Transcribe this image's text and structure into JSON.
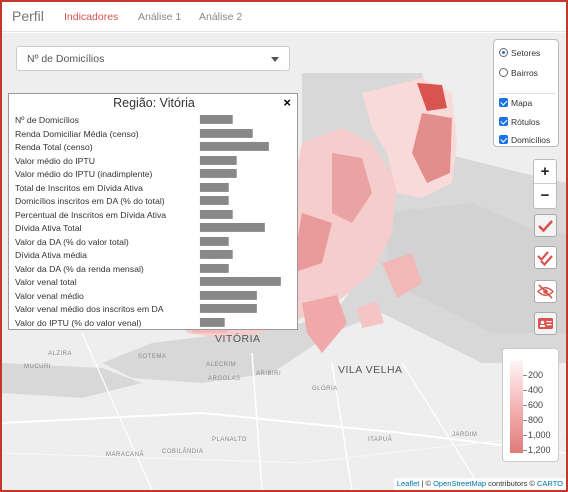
{
  "nav": {
    "brand": "Perfil",
    "tabs": [
      {
        "label": "Indicadores",
        "active": true
      },
      {
        "label": "Análise 1",
        "active": false
      },
      {
        "label": "Análise 2",
        "active": false
      }
    ]
  },
  "indicator_select": {
    "value": "Nº de Domicílios"
  },
  "info_panel": {
    "title": "Região: Vitória",
    "close_symbol": "×",
    "rows": [
      {
        "label": "Nº de Domicílios",
        "value": "████████"
      },
      {
        "label": "Renda Domiciliar Média (censo)",
        "value": "█████████████"
      },
      {
        "label": "Renda Total (censo)",
        "value": "█████████████████"
      },
      {
        "label": "Valor médio do IPTU",
        "value": "█████████"
      },
      {
        "label": "Valor médio do IPTU (inadimplente)",
        "value": "█████████"
      },
      {
        "label": "Total de Inscritos em Dívida Ativa",
        "value": "███████"
      },
      {
        "label": "Domicílios inscritos em DA (% do total)",
        "value": "███████"
      },
      {
        "label": "Percentual de Inscritos em Dívida Ativa",
        "value": "████████"
      },
      {
        "label": "Dívida Ativa Total",
        "value": "████████████████"
      },
      {
        "label": "Valor da DA (% do valor total)",
        "value": "███████"
      },
      {
        "label": "Dívida Ativa média",
        "value": "████████"
      },
      {
        "label": "Valor da DA (% da renda mensal)",
        "value": "███████"
      },
      {
        "label": "Valor venal total",
        "value": "████████████████████"
      },
      {
        "label": "Valor venal médio",
        "value": "██████████████"
      },
      {
        "label": "Valor venal médio dos inscritos em DA",
        "value": "██████████████"
      },
      {
        "label": "Valor do IPTU (% do valor venal)",
        "value": "██████"
      }
    ]
  },
  "layer_control": {
    "base": [
      {
        "label": "Setores",
        "checked": true
      },
      {
        "label": "Bairros",
        "checked": false
      }
    ],
    "overlays": [
      {
        "label": "Mapa",
        "checked": true
      },
      {
        "label": "Rótulos",
        "checked": true
      },
      {
        "label": "Domicílios",
        "checked": true
      }
    ]
  },
  "zoom": {
    "in": "+",
    "out": "−"
  },
  "tools": [
    {
      "name": "check-icon",
      "style": "active"
    },
    {
      "name": "double-check-icon",
      "style": "normal"
    },
    {
      "name": "eye-off-icon",
      "style": "normal"
    },
    {
      "name": "id-card-icon",
      "style": "active"
    }
  ],
  "legend": {
    "ticks": [
      "200",
      "400",
      "600",
      "800",
      "1,000",
      "1,200"
    ]
  },
  "map_labels": [
    {
      "text": "VITÓRIA",
      "size": "big"
    },
    {
      "text": "VILA VELHA",
      "size": "big"
    },
    {
      "text": "GLÓRIA",
      "size": "small"
    },
    {
      "text": "ARIBIRI",
      "size": "small"
    },
    {
      "text": "MARACANÃ",
      "size": "small"
    },
    {
      "text": "PLANALTO",
      "size": "small"
    },
    {
      "text": "JARDIM",
      "size": "small"
    },
    {
      "text": "ITAPUÃ",
      "size": "small"
    },
    {
      "text": "COBILÂNDIA",
      "size": "small"
    },
    {
      "text": "ALECRIM",
      "size": "small"
    },
    {
      "text": "SOTEMA",
      "size": "small"
    },
    {
      "text": "ALZIRA",
      "size": "small"
    },
    {
      "text": "MUCURI",
      "size": "small"
    },
    {
      "text": "ARGOLAS",
      "size": "small"
    }
  ],
  "attribution": {
    "leaflet": "Leaflet",
    "sep": " | © ",
    "osm": "OpenStreetMap",
    "mid": " contributors © ",
    "carto": "CARTO"
  },
  "colors": {
    "accent": "#d9534f",
    "check_blue": "#1a73e8",
    "choropleth_low": "#fbe3e3",
    "choropleth_high": "#d9534f",
    "water": "#d6d6d6",
    "land": "#eeeeee"
  }
}
